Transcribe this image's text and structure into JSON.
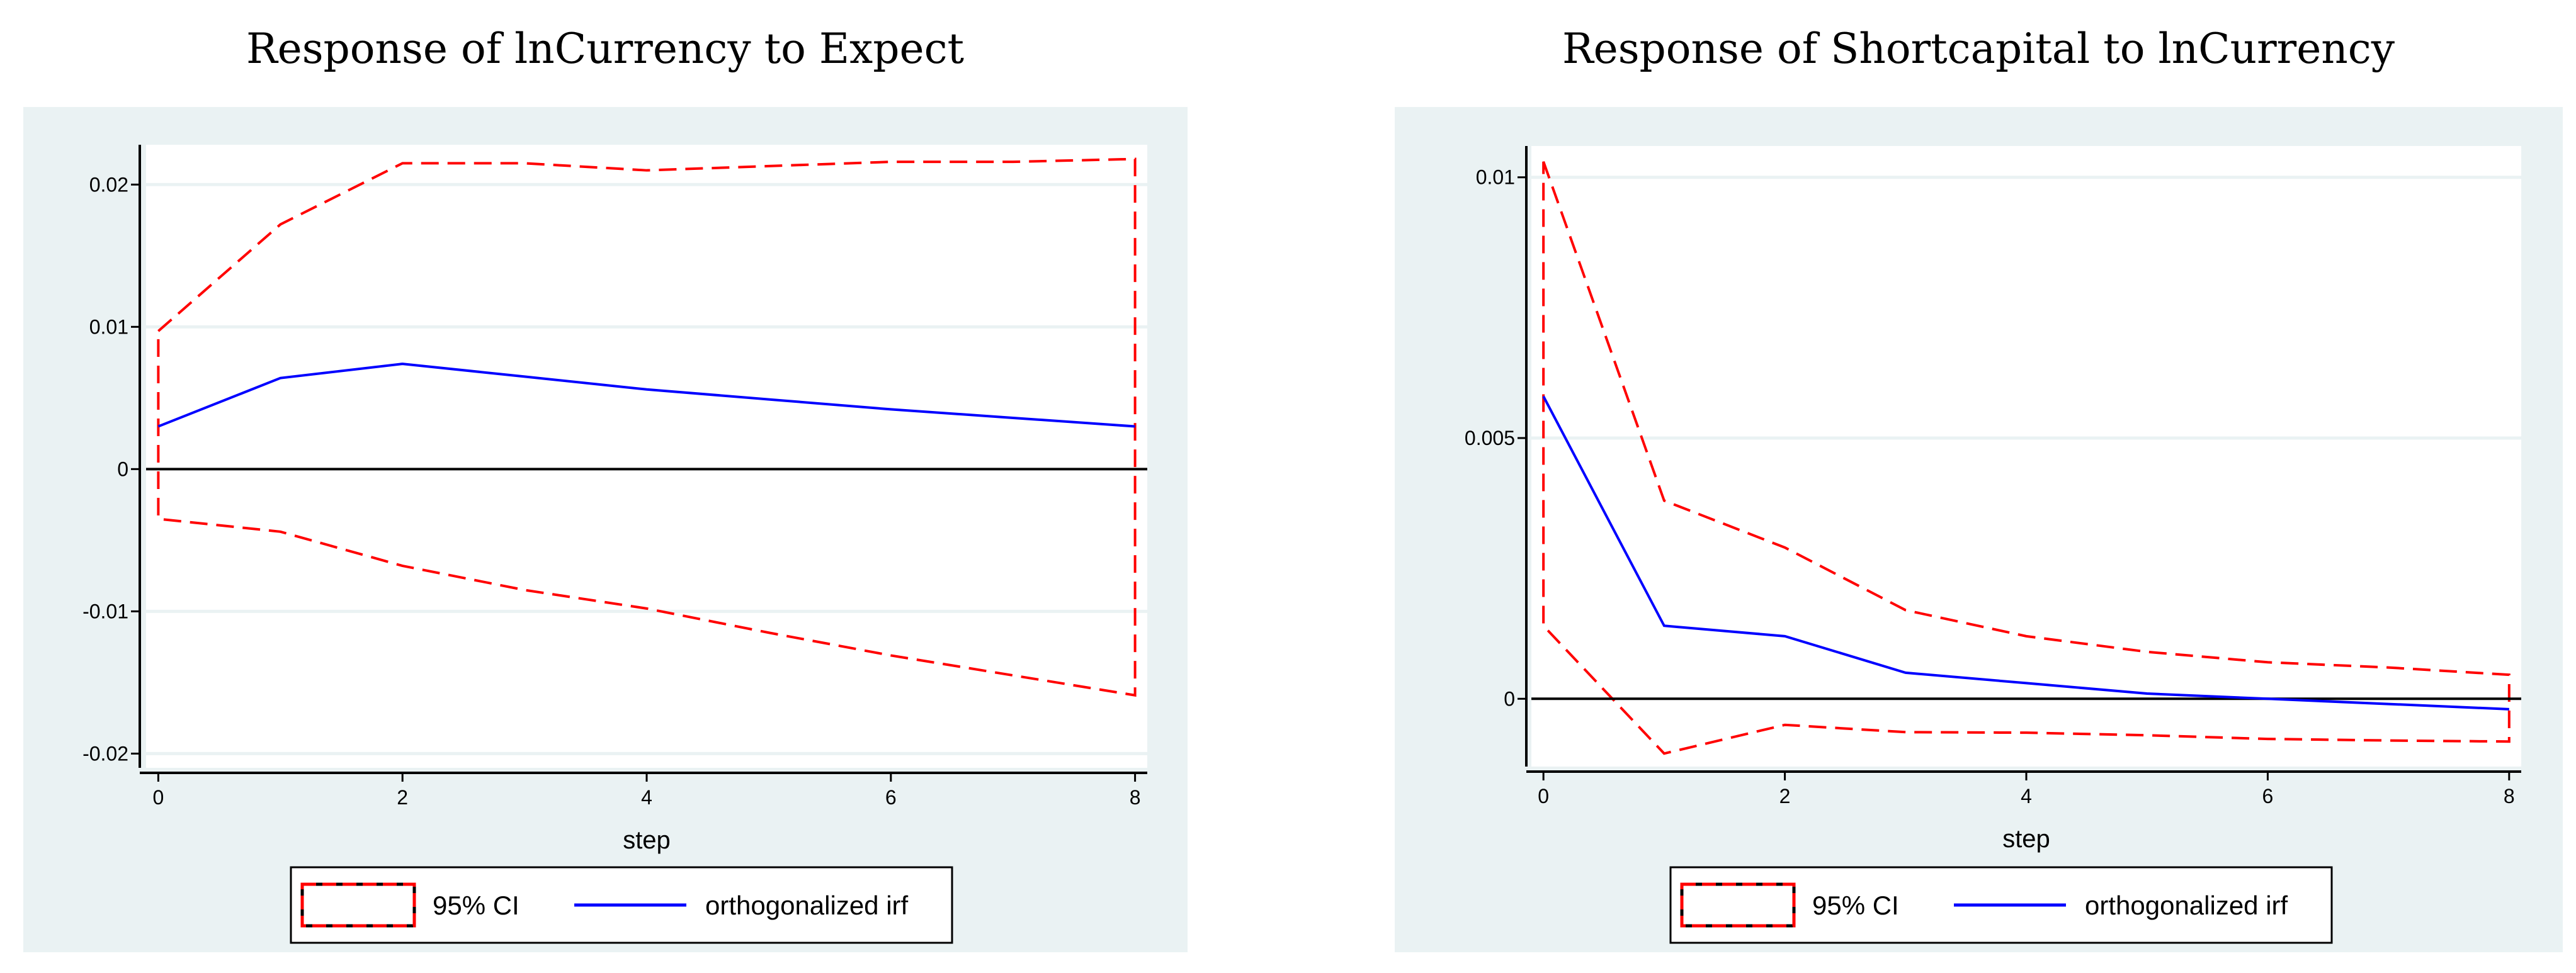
{
  "colors": {
    "panel_bg": "#eaf2f3",
    "ci": "#ff0000",
    "irf": "#0000ff",
    "zero_line": "#000000",
    "grid": "#eaf2f3"
  },
  "chart_data": [
    {
      "type": "line",
      "title": "Response of lnCurrency to Expect",
      "xlabel": "step",
      "ylabel": "",
      "x": [
        0,
        1,
        2,
        3,
        4,
        5,
        6,
        7,
        8
      ],
      "xticks": [
        0,
        2,
        4,
        6,
        8
      ],
      "xtick_labels": [
        "0",
        "2",
        "4",
        "6",
        "8"
      ],
      "yticks": [
        -0.02,
        -0.01,
        0,
        0.01,
        0.02
      ],
      "ytick_labels": [
        "-0.02",
        "-0.01",
        "0",
        "0.01",
        "0.02"
      ],
      "ylim": [
        -0.021,
        0.0228
      ],
      "xlim": [
        -0.1,
        8.1
      ],
      "grid": true,
      "legend_position": "bottom",
      "series": [
        {
          "name": "95% CI",
          "kind": "ci_band",
          "upper": [
            0.0097,
            0.0172,
            0.0215,
            0.0215,
            0.021,
            0.0213,
            0.0216,
            0.0216,
            0.0218
          ],
          "lower": [
            -0.0035,
            -0.0044,
            -0.0068,
            -0.0085,
            -0.0098,
            -0.0115,
            -0.0131,
            -0.0145,
            -0.0159
          ]
        },
        {
          "name": "orthogonalized irf",
          "kind": "line",
          "values": [
            0.003,
            0.0064,
            0.0074,
            0.0065,
            0.0056,
            0.0049,
            0.0042,
            0.0036,
            0.003
          ]
        }
      ]
    },
    {
      "type": "line",
      "title": "Response of Shortcapital to lnCurrency",
      "xlabel": "step",
      "ylabel": "",
      "x": [
        0,
        1,
        2,
        3,
        4,
        5,
        6,
        7,
        8
      ],
      "xticks": [
        0,
        2,
        4,
        6,
        8
      ],
      "xtick_labels": [
        "0",
        "2",
        "4",
        "6",
        "8"
      ],
      "yticks": [
        0,
        0.005,
        0.01
      ],
      "ytick_labels": [
        "0",
        "0.005",
        "0.01"
      ],
      "ylim": [
        -0.0013,
        0.0106
      ],
      "xlim": [
        -0.1,
        8.1
      ],
      "grid": true,
      "legend_position": "bottom",
      "series": [
        {
          "name": "95% CI",
          "kind": "ci_band",
          "upper": [
            0.0103,
            0.0038,
            0.0029,
            0.0017,
            0.0012,
            0.0009,
            0.0007,
            0.0006,
            0.00046
          ],
          "lower": [
            0.0014,
            -0.00105,
            -0.0005,
            -0.00064,
            -0.00065,
            -0.0007,
            -0.00077,
            -0.0008,
            -0.00082
          ]
        },
        {
          "name": "orthogonalized irf",
          "kind": "line",
          "values": [
            0.0058,
            0.0014,
            0.0012,
            0.0005,
            0.0003,
            0.0001,
            0.0,
            -0.0001,
            -0.0002
          ]
        }
      ]
    }
  ]
}
